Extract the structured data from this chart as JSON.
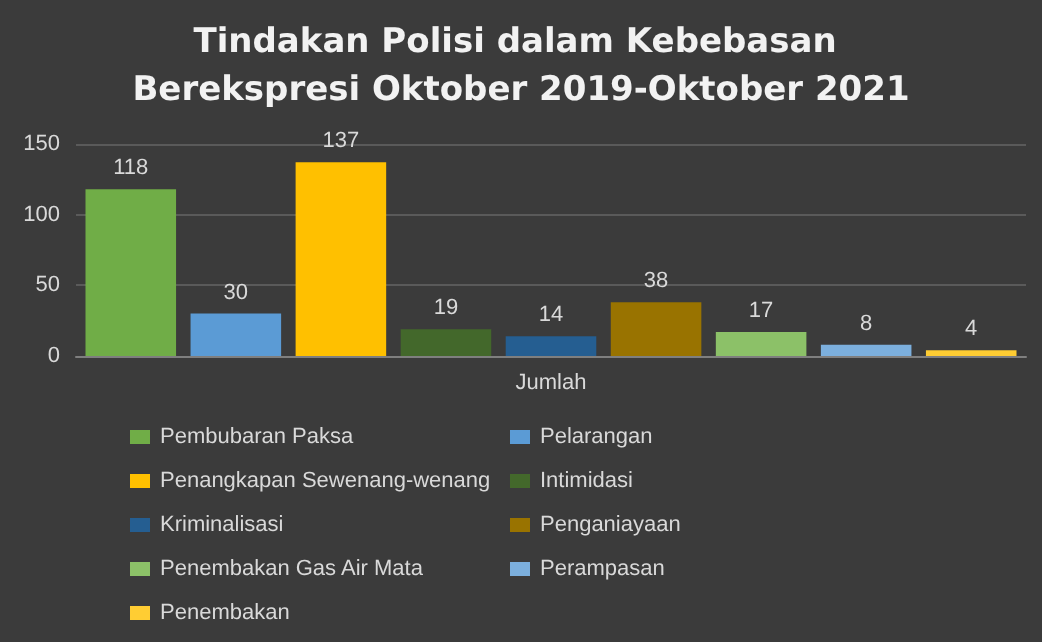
{
  "chart_data": {
    "type": "bar",
    "title": "Tindakan Polisi dalam Kebebasan Berekspresi Oktober 2019-Oktober 2021",
    "categories": [
      "Jumlah"
    ],
    "series": [
      {
        "name": "Pembubaran Paksa",
        "color": "#70ad47",
        "values": [
          118
        ]
      },
      {
        "name": "Pelarangan",
        "color": "#5b9bd5",
        "values": [
          30
        ]
      },
      {
        "name": "Penangkapan Sewenang-wenang",
        "color": "#ffc000",
        "values": [
          137
        ]
      },
      {
        "name": "Intimidasi",
        "color": "#43682b",
        "values": [
          19
        ]
      },
      {
        "name": "Kriminalisasi",
        "color": "#255e91",
        "values": [
          14
        ]
      },
      {
        "name": "Penganiayaan",
        "color": "#997300",
        "values": [
          38
        ]
      },
      {
        "name": "Penembakan Gas Air Mata",
        "color": "#8cc168",
        "values": [
          17
        ]
      },
      {
        "name": "Perampasan",
        "color": "#7cafdd",
        "values": [
          8
        ]
      },
      {
        "name": "Penembakan",
        "color": "#ffcd33",
        "values": [
          4
        ]
      }
    ],
    "ylim": [
      0,
      150
    ],
    "yticks": [
      0,
      50,
      100,
      150
    ],
    "grid": "y",
    "legend": "bottom",
    "data_labels": true
  }
}
